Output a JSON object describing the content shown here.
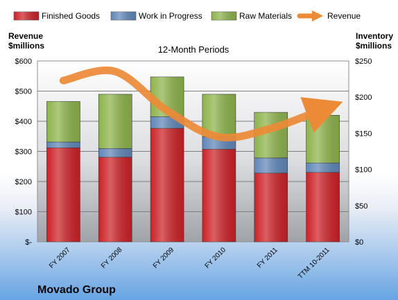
{
  "colors": {
    "finished_goods": "#cc2126",
    "work_in_progress": "#5f86b8",
    "raw_materials": "#8db34a",
    "revenue": "#ed8a35",
    "plot_bg_top": "#ffffff",
    "plot_bg_bottom": "#9fa3a8"
  },
  "company": "Movado Group",
  "chart_data": {
    "type": "bar",
    "title": "12-Month Periods",
    "left_axis_label": [
      "Revenue",
      "$millions"
    ],
    "right_axis_label": [
      "Inventory",
      "$millions"
    ],
    "categories": [
      "FY 2007",
      "FY 2008",
      "FY 2009",
      "FY 2010",
      "FY 2011",
      "TTM 10-2011"
    ],
    "y_left": {
      "min": 0,
      "max": 600,
      "step": 100,
      "tick_labels": [
        "$-",
        "$100",
        "$200",
        "$300",
        "$400",
        "$500",
        "$600"
      ]
    },
    "y_right": {
      "min": 0,
      "max": 250,
      "step": 50,
      "tick_labels": [
        "$0",
        "$50",
        "$100",
        "$150",
        "$200",
        "$250"
      ]
    },
    "grid": true,
    "legend": "top",
    "stacked_series": [
      {
        "name": "Finished Goods",
        "axis": "right",
        "values": [
          130,
          117,
          157,
          128,
          95,
          96
        ]
      },
      {
        "name": "Work in Progress",
        "axis": "right",
        "values": [
          8,
          12,
          16,
          17,
          21,
          13
        ]
      },
      {
        "name": "Raw Materials",
        "axis": "right",
        "values": [
          56,
          75,
          55,
          59,
          63,
          66
        ]
      }
    ],
    "line_series": {
      "name": "Revenue",
      "axis": "left",
      "values": [
        535,
        565,
        435,
        348,
        376,
        440
      ]
    }
  }
}
